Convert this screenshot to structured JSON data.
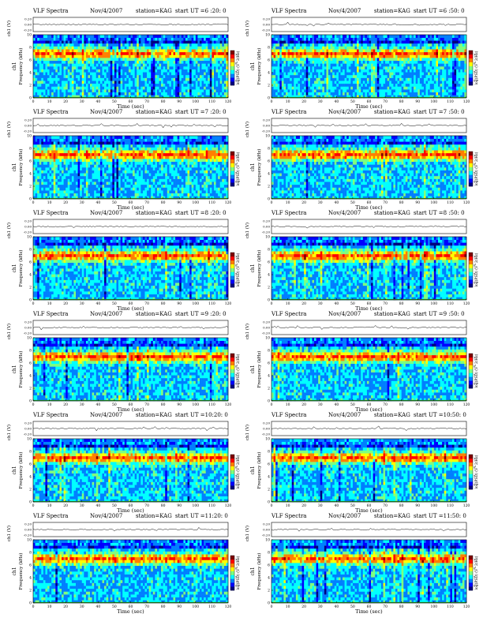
{
  "chart_data": [
    {
      "type": "heatmap",
      "title": "VLF Spectra",
      "date": "Nov/4/2007",
      "station": "station=KAG",
      "start": "start UT =6 :20: 0",
      "top_ylabel": "ch1 (V)",
      "top_ticks": [
        "0.20",
        "0.00",
        "-0.20"
      ],
      "ylabel_channel": "ch1",
      "ylabel": "Frequency (kHz)",
      "yticks": [
        0,
        2,
        4,
        6,
        8,
        10
      ],
      "xlabel": "Time (sec)",
      "xticks": [
        0,
        10,
        20,
        30,
        40,
        50,
        60,
        70,
        80,
        90,
        100,
        110,
        120
      ],
      "xlim": [
        0,
        120
      ],
      "ylim": [
        0,
        10
      ],
      "colorbar_label": "log(PSD) (V^2/Hz)",
      "colorbar_ticks": [
        "4",
        "5",
        "6",
        "7"
      ]
    },
    {
      "type": "heatmap",
      "title": "VLF Spectra",
      "date": "Nov/4/2007",
      "station": "station=KAG",
      "start": "start UT =6 :50: 0",
      "top_ylabel": "ch1 (V)",
      "top_ticks": [
        "0.20",
        "0.00",
        "-0.20"
      ],
      "ylabel_channel": "ch1",
      "ylabel": "Frequency (kHz)",
      "yticks": [
        0,
        2,
        4,
        6,
        8,
        10
      ],
      "xlabel": "Time (sec)",
      "xticks": [
        0,
        10,
        20,
        30,
        40,
        50,
        60,
        70,
        80,
        90,
        100,
        110,
        120
      ],
      "xlim": [
        0,
        120
      ],
      "ylim": [
        0,
        10
      ],
      "colorbar_label": "log(PSD) (V^2/Hz)",
      "colorbar_ticks": [
        "4",
        "5",
        "6",
        "7"
      ]
    },
    {
      "type": "heatmap",
      "title": "VLF Spectra",
      "date": "Nov/4/2007",
      "station": "station=KAG",
      "start": "start UT =7 :20: 0",
      "top_ylabel": "ch1 (V)",
      "top_ticks": [
        "0.20",
        "0.00",
        "-0.20"
      ],
      "ylabel_channel": "ch1",
      "ylabel": "Frequency (kHz)",
      "yticks": [
        0,
        2,
        4,
        6,
        8,
        10
      ],
      "xlabel": "Time (sec)",
      "xticks": [
        0,
        10,
        20,
        30,
        40,
        50,
        60,
        70,
        80,
        90,
        100,
        110,
        120
      ],
      "xlim": [
        0,
        120
      ],
      "ylim": [
        0,
        10
      ],
      "colorbar_label": "log(PSD) (V^2/Hz)",
      "colorbar_ticks": [
        "4",
        "5",
        "6",
        "7"
      ]
    },
    {
      "type": "heatmap",
      "title": "VLF Spectra",
      "date": "Nov/4/2007",
      "station": "station=KAG",
      "start": "start UT =7 :50: 0",
      "top_ylabel": "ch1 (V)",
      "top_ticks": [
        "0.20",
        "0.00",
        "-0.20"
      ],
      "ylabel_channel": "ch1",
      "ylabel": "Frequency (kHz)",
      "yticks": [
        0,
        2,
        4,
        6,
        8,
        10
      ],
      "xlabel": "Time (sec)",
      "xticks": [
        0,
        10,
        20,
        30,
        40,
        50,
        60,
        70,
        80,
        90,
        100,
        110,
        120
      ],
      "xlim": [
        0,
        120
      ],
      "ylim": [
        0,
        10
      ],
      "colorbar_label": "log(PSD) (V^2/Hz)",
      "colorbar_ticks": [
        "4",
        "5",
        "6",
        "7"
      ]
    },
    {
      "type": "heatmap",
      "title": "VLF Spectra",
      "date": "Nov/4/2007",
      "station": "station=KAG",
      "start": "start UT =8 :20: 0",
      "top_ylabel": "ch1 (V)",
      "top_ticks": [
        "0.20",
        "0.00",
        "-0.20"
      ],
      "ylabel_channel": "ch1",
      "ylabel": "Frequency (kHz)",
      "yticks": [
        0,
        2,
        4,
        6,
        8,
        10
      ],
      "xlabel": "Time (sec)",
      "xticks": [
        0,
        10,
        20,
        30,
        40,
        50,
        60,
        70,
        80,
        90,
        100,
        110,
        120
      ],
      "xlim": [
        0,
        120
      ],
      "ylim": [
        0,
        10
      ],
      "colorbar_label": "log(PSD) (V^2/Hz)",
      "colorbar_ticks": [
        "4",
        "5",
        "6",
        "7"
      ]
    },
    {
      "type": "heatmap",
      "title": "VLF Spectra",
      "date": "Nov/4/2007",
      "station": "station=KAG",
      "start": "start UT =8 :50: 0",
      "top_ylabel": "ch1 (V)",
      "top_ticks": [
        "0.20",
        "0.00",
        "-0.20"
      ],
      "ylabel_channel": "ch1",
      "ylabel": "Frequency (kHz)",
      "yticks": [
        0,
        2,
        4,
        6,
        8,
        10
      ],
      "xlabel": "Time (sec)",
      "xticks": [
        0,
        10,
        20,
        30,
        40,
        50,
        60,
        70,
        80,
        90,
        100,
        110,
        120
      ],
      "xlim": [
        0,
        120
      ],
      "ylim": [
        0,
        10
      ],
      "colorbar_label": "log(PSD) (V^2/Hz)",
      "colorbar_ticks": [
        "4",
        "5",
        "6",
        "7"
      ]
    },
    {
      "type": "heatmap",
      "title": "VLF Spectra",
      "date": "Nov/4/2007",
      "station": "station=KAG",
      "start": "start UT =9 :20: 0",
      "top_ylabel": "ch1 (V)",
      "top_ticks": [
        "0.20",
        "0.00",
        "-0.20"
      ],
      "ylabel_channel": "ch1",
      "ylabel": "Frequency (kHz)",
      "yticks": [
        0,
        2,
        4,
        6,
        8,
        10
      ],
      "xlabel": "Time (sec)",
      "xticks": [
        0,
        10,
        20,
        30,
        40,
        50,
        60,
        70,
        80,
        90,
        100,
        110,
        120
      ],
      "xlim": [
        0,
        120
      ],
      "ylim": [
        0,
        10
      ],
      "colorbar_label": "log(PSD) (V^2/Hz)",
      "colorbar_ticks": [
        "4",
        "5",
        "6",
        "7"
      ]
    },
    {
      "type": "heatmap",
      "title": "VLF Spectra",
      "date": "Nov/4/2007",
      "station": "station=KAG",
      "start": "start UT =9 :50: 0",
      "top_ylabel": "ch1 (V)",
      "top_ticks": [
        "0.20",
        "0.00",
        "-0.20"
      ],
      "ylabel_channel": "ch1",
      "ylabel": "Frequency (kHz)",
      "yticks": [
        0,
        2,
        4,
        6,
        8,
        10
      ],
      "xlabel": "Time (sec)",
      "xticks": [
        0,
        10,
        20,
        30,
        40,
        50,
        60,
        70,
        80,
        90,
        100,
        110,
        120
      ],
      "xlim": [
        0,
        120
      ],
      "ylim": [
        0,
        10
      ],
      "colorbar_label": "log(PSD) (V^2/Hz)",
      "colorbar_ticks": [
        "4",
        "5",
        "6",
        "7"
      ]
    },
    {
      "type": "heatmap",
      "title": "VLF Spectra",
      "date": "Nov/4/2007",
      "station": "station=KAG",
      "start": "start UT =10:20: 0",
      "top_ylabel": "ch1 (V)",
      "top_ticks": [
        "0.20",
        "0.00",
        "-0.20"
      ],
      "ylabel_channel": "ch1",
      "ylabel": "Frequency (kHz)",
      "yticks": [
        0,
        2,
        4,
        6,
        8,
        10
      ],
      "xlabel": "Time (sec)",
      "xticks": [
        0,
        10,
        20,
        30,
        40,
        50,
        60,
        70,
        80,
        90,
        100,
        110,
        120
      ],
      "xlim": [
        0,
        120
      ],
      "ylim": [
        0,
        10
      ],
      "colorbar_label": "log(PSD) (V^2/Hz)",
      "colorbar_ticks": [
        "4",
        "5",
        "6",
        "7"
      ]
    },
    {
      "type": "heatmap",
      "title": "VLF Spectra",
      "date": "Nov/4/2007",
      "station": "station=KAG",
      "start": "start UT =10:50: 0",
      "top_ylabel": "ch1 (V)",
      "top_ticks": [
        "0.20",
        "0.00",
        "-0.20"
      ],
      "ylabel_channel": "ch1",
      "ylabel": "Frequency (kHz)",
      "yticks": [
        0,
        2,
        4,
        6,
        8,
        10
      ],
      "xlabel": "Time (sec)",
      "xticks": [
        0,
        10,
        20,
        30,
        40,
        50,
        60,
        70,
        80,
        90,
        100,
        110,
        120
      ],
      "xlim": [
        0,
        120
      ],
      "ylim": [
        0,
        10
      ],
      "colorbar_label": "log(PSD) (V^2/Hz)",
      "colorbar_ticks": [
        "4",
        "5",
        "6",
        "7"
      ]
    },
    {
      "type": "heatmap",
      "title": "VLF Spectra",
      "date": "Nov/4/2007",
      "station": "station=KAG",
      "start": "start UT =11:20: 0",
      "top_ylabel": "ch1 (V)",
      "top_ticks": [
        "0.20",
        "0.00",
        "-0.20"
      ],
      "ylabel_channel": "ch1",
      "ylabel": "Frequency (kHz)",
      "yticks": [
        0,
        2,
        4,
        6,
        8,
        10
      ],
      "xlabel": "Time (sec)",
      "xticks": [
        0,
        10,
        20,
        30,
        40,
        50,
        60,
        70,
        80,
        90,
        100,
        110,
        120
      ],
      "xlim": [
        0,
        120
      ],
      "ylim": [
        0,
        10
      ],
      "colorbar_label": "log(PSD) (V^2/Hz)",
      "colorbar_ticks": [
        "4",
        "5",
        "6",
        "7"
      ]
    },
    {
      "type": "heatmap",
      "title": "VLF Spectra",
      "date": "Nov/4/2007",
      "station": "station=KAG",
      "start": "start UT =11:50: 0",
      "top_ylabel": "ch1 (V)",
      "top_ticks": [
        "0.20",
        "0.00",
        "-0.20"
      ],
      "ylabel_channel": "ch1",
      "ylabel": "Frequency (kHz)",
      "yticks": [
        0,
        2,
        4,
        6,
        8,
        10
      ],
      "xlabel": "Time (sec)",
      "xticks": [
        0,
        10,
        20,
        30,
        40,
        50,
        60,
        70,
        80,
        90,
        100,
        110,
        120
      ],
      "xlim": [
        0,
        120
      ],
      "ylim": [
        0,
        10
      ],
      "colorbar_label": "log(PSD) (V^2/Hz)",
      "colorbar_ticks": [
        "4",
        "5",
        "6",
        "7"
      ]
    }
  ],
  "colors": {
    "colormap": [
      "#00007f",
      "#0000ff",
      "#007fff",
      "#00ffff",
      "#7fff7f",
      "#ffff00",
      "#ff7f00",
      "#ff0000",
      "#7f0000"
    ],
    "baseline": "#2ba02b",
    "axis": "#000000"
  }
}
